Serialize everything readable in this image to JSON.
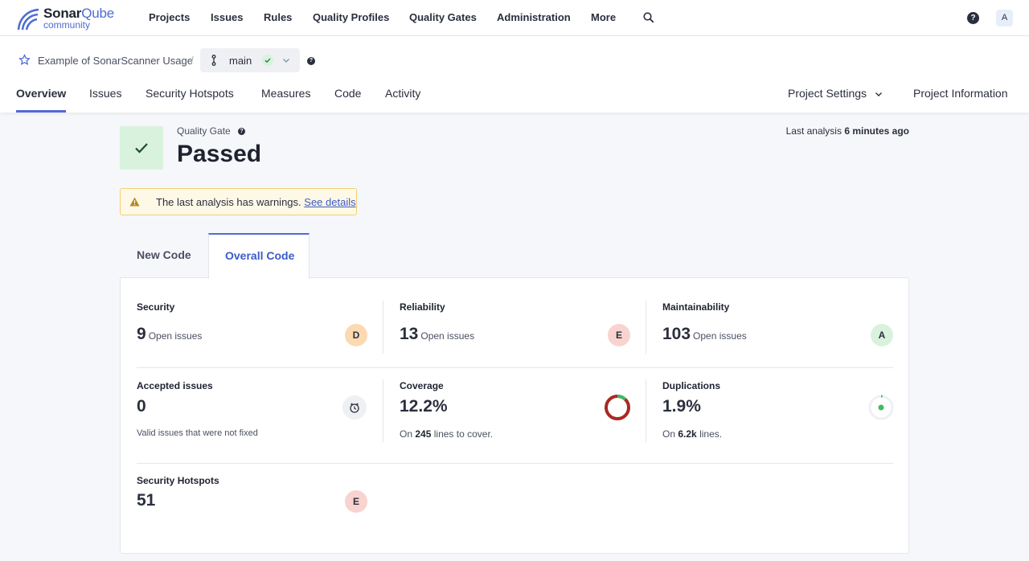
{
  "brand": {
    "name_part1": "Sonar",
    "name_part2": "Qube",
    "edition": "community"
  },
  "nav": {
    "items": [
      "Projects",
      "Issues",
      "Rules",
      "Quality Profiles",
      "Quality Gates",
      "Administration",
      "More"
    ],
    "help_label": "?",
    "avatar_letter": "A"
  },
  "project": {
    "name": "Example of SonarScanner Usage",
    "separator": "/",
    "branch": "main",
    "help_label": "?"
  },
  "tabs": {
    "items": [
      "Overview",
      "Issues",
      "Security Hotspots",
      "Measures",
      "Code",
      "Activity"
    ],
    "active": "Overview",
    "settings": "Project Settings",
    "info": "Project Information"
  },
  "quality_gate": {
    "label": "Quality Gate",
    "help_label": "?",
    "status": "Passed",
    "status_color": "#d9f2dd",
    "last_analysis_label": "Last analysis",
    "last_analysis_value": "6 minutes ago"
  },
  "warning": {
    "text": "The last analysis has warnings.",
    "link": "See details"
  },
  "code_tabs": {
    "new": "New Code",
    "overall": "Overall Code",
    "active": "Overall Code"
  },
  "metrics": {
    "security": {
      "title": "Security",
      "value": "9",
      "sub": "Open issues",
      "rating": "D",
      "rating_color": "#fdd9b1"
    },
    "reliability": {
      "title": "Reliability",
      "value": "13",
      "sub": "Open issues",
      "rating": "E",
      "rating_color": "#f8d3cf"
    },
    "maintainability": {
      "title": "Maintainability",
      "value": "103",
      "sub": "Open issues",
      "rating": "A",
      "rating_color": "#d9f2dd"
    },
    "accepted": {
      "title": "Accepted issues",
      "value": "0",
      "note": "Valid issues that were not fixed",
      "icon": "alarm-clock-icon"
    },
    "coverage": {
      "title": "Coverage",
      "value": "12.2%",
      "note_pre": "On",
      "note_bold": "245",
      "note_post": "lines to cover.",
      "percent": 12.2,
      "covered_color": "#3fba63",
      "uncovered_color": "#a82a22"
    },
    "duplications": {
      "title": "Duplications",
      "value": "1.9%",
      "note_pre": "On",
      "note_bold": "6.2k",
      "note_post": "lines.",
      "percent": 1.9,
      "dot_color": "#3fba63"
    },
    "hotspots": {
      "title": "Security Hotspots",
      "value": "51",
      "rating": "E",
      "rating_color": "#f8d3cf"
    }
  }
}
